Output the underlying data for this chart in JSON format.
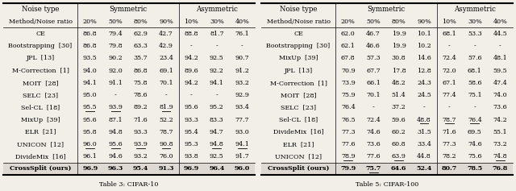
{
  "table1": {
    "caption": "Table 3: CIFAR-10",
    "rows": [
      [
        "CE",
        "86.8",
        "79.4",
        "62.9",
        "42.7",
        "88.8",
        "81.7",
        "76.1"
      ],
      [
        "Bootstrapping  [30]",
        "86.8",
        "79.8",
        "63.3",
        "42.9",
        "-",
        "-",
        "-"
      ],
      [
        "JPL  [13]",
        "93.5",
        "90.2",
        "35.7",
        "23.4",
        "94.2",
        "92.5",
        "90.7"
      ],
      [
        "M-Correction  [1]",
        "94.0",
        "92.0",
        "86.8",
        "69.1",
        "89.6",
        "92.2",
        "91.2"
      ],
      [
        "MOIT  [28]",
        "94.1",
        "91.1",
        "75.8",
        "70.1",
        "94.2",
        "94.1",
        "93.2"
      ],
      [
        "SELC  [23]",
        "95.0",
        "-",
        "78.6",
        "-",
        "-",
        "-",
        "92.9"
      ],
      [
        "Sel-CL  [18]",
        "95.5",
        "93.9",
        "89.2",
        "81.9",
        "95.6",
        "95.2",
        "93.4"
      ],
      [
        "MixUp  [39]",
        "95.6",
        "87.1",
        "71.6",
        "52.2",
        "93.3",
        "83.3",
        "77.7"
      ],
      [
        "ELR  [21]",
        "95.8",
        "94.8",
        "93.3",
        "78.7",
        "95.4",
        "94.7",
        "93.0"
      ],
      [
        "UNICON  [12]",
        "96.0",
        "95.6",
        "93.9",
        "90.8",
        "95.3",
        "94.8",
        "94.1"
      ],
      [
        "DivideMix  [16]",
        "96.1",
        "94.6",
        "93.2",
        "76.0",
        "93.8",
        "92.5",
        "91.7"
      ]
    ],
    "last_row": [
      "CrossSplit (ours)",
      "96.9",
      "96.3",
      "95.4",
      "91.3",
      "96.9",
      "96.4",
      "96.0"
    ],
    "underline_cells": [
      [
        6,
        1
      ],
      [
        6,
        2
      ],
      [
        6,
        4
      ],
      [
        9,
        1
      ],
      [
        9,
        2
      ],
      [
        9,
        3
      ],
      [
        9,
        4
      ],
      [
        9,
        6
      ],
      [
        9,
        7
      ],
      [
        10,
        0
      ]
    ],
    "last_row_underline": []
  },
  "table2": {
    "caption": "Table 5: CIFAR-100",
    "rows": [
      [
        "CE",
        "62.0",
        "46.7",
        "19.9",
        "10.1",
        "68.1",
        "53.3",
        "44.5"
      ],
      [
        "Bootstrapping  [30]",
        "62.1",
        "46.6",
        "19.9",
        "10.2",
        "-",
        "-",
        "-"
      ],
      [
        "MixUp  [39]",
        "67.8",
        "57.3",
        "30.8",
        "14.6",
        "72.4",
        "57.6",
        "48.1"
      ],
      [
        "JPL  [13]",
        "70.9",
        "67.7",
        "17.8",
        "12.8",
        "72.0",
        "68.1",
        "59.5"
      ],
      [
        "M-Correction  [1]",
        "73.9",
        "66.1",
        "48.2",
        "24.3",
        "67.1",
        "58.6",
        "47.4"
      ],
      [
        "MOIT  [28]",
        "75.9",
        "70.1",
        "51.4",
        "24.5",
        "77.4",
        "75.1",
        "74.0"
      ],
      [
        "SELC  [23]",
        "76.4",
        "-",
        "37.2",
        "-",
        "-",
        "-",
        "73.6"
      ],
      [
        "Sel-CL  [18]",
        "76.5",
        "72.4",
        "59.6",
        "48.8",
        "78.7",
        "76.4",
        "74.2"
      ],
      [
        "DivideMix  [16]",
        "77.3",
        "74.6",
        "60.2",
        "31.5",
        "71.6",
        "69.5",
        "55.1"
      ],
      [
        "ELR  [21]",
        "77.6",
        "73.6",
        "60.8",
        "33.4",
        "77.3",
        "74.6",
        "73.2"
      ],
      [
        "UNICON  [12]",
        "78.9",
        "77.6",
        "63.9",
        "44.8",
        "78.2",
        "75.6",
        "74.8"
      ]
    ],
    "last_row": [
      "CrossSplit (ours)",
      "79.9",
      "75.7",
      "64.6",
      "52.4",
      "80.7",
      "78.5",
      "76.8"
    ],
    "underline_cells": [
      [
        7,
        4
      ],
      [
        7,
        5
      ],
      [
        7,
        6
      ],
      [
        10,
        0
      ],
      [
        10,
        1
      ],
      [
        10,
        3
      ],
      [
        10,
        7
      ]
    ],
    "last_row_underline": [
      1
    ]
  },
  "bg_color": "#f2efe9",
  "font_size": 5.8,
  "header_font_size": 6.2
}
